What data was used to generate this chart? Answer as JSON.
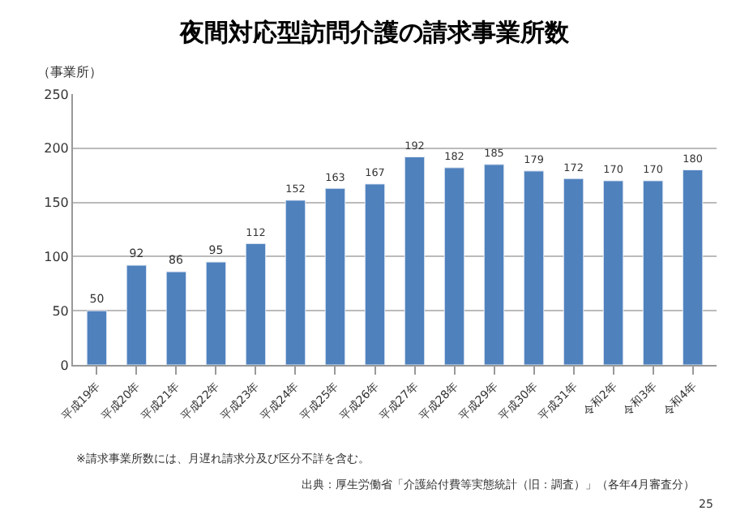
{
  "chart_data": {
    "type": "bar",
    "title": "夜間対応型訪問介護の請求事業所数",
    "ylabel": "（事業所）",
    "categories": [
      "平成19年",
      "平成20年",
      "平成21年",
      "平成22年",
      "平成23年",
      "平成24年",
      "平成25年",
      "平成26年",
      "平成27年",
      "平成28年",
      "平成29年",
      "平成30年",
      "平成31年",
      "令和2年",
      "令和3年",
      "令和4年"
    ],
    "values": [
      50,
      92,
      86,
      95,
      112,
      152,
      163,
      167,
      192,
      182,
      185,
      179,
      172,
      170,
      170,
      180
    ],
    "color": "#4f81bd",
    "ylim": [
      0,
      250
    ],
    "yticks": [
      0,
      50,
      100,
      150,
      200,
      250
    ],
    "grid": "y",
    "data_labels": true,
    "legend": false,
    "annotations": [
      "※請求事業所数には、月遅れ請求分及び区分不詳を含む。",
      "出典：厚生労働省「介護給付費等実態統計（旧：調査）」（各年4月審査分）",
      "25"
    ]
  }
}
